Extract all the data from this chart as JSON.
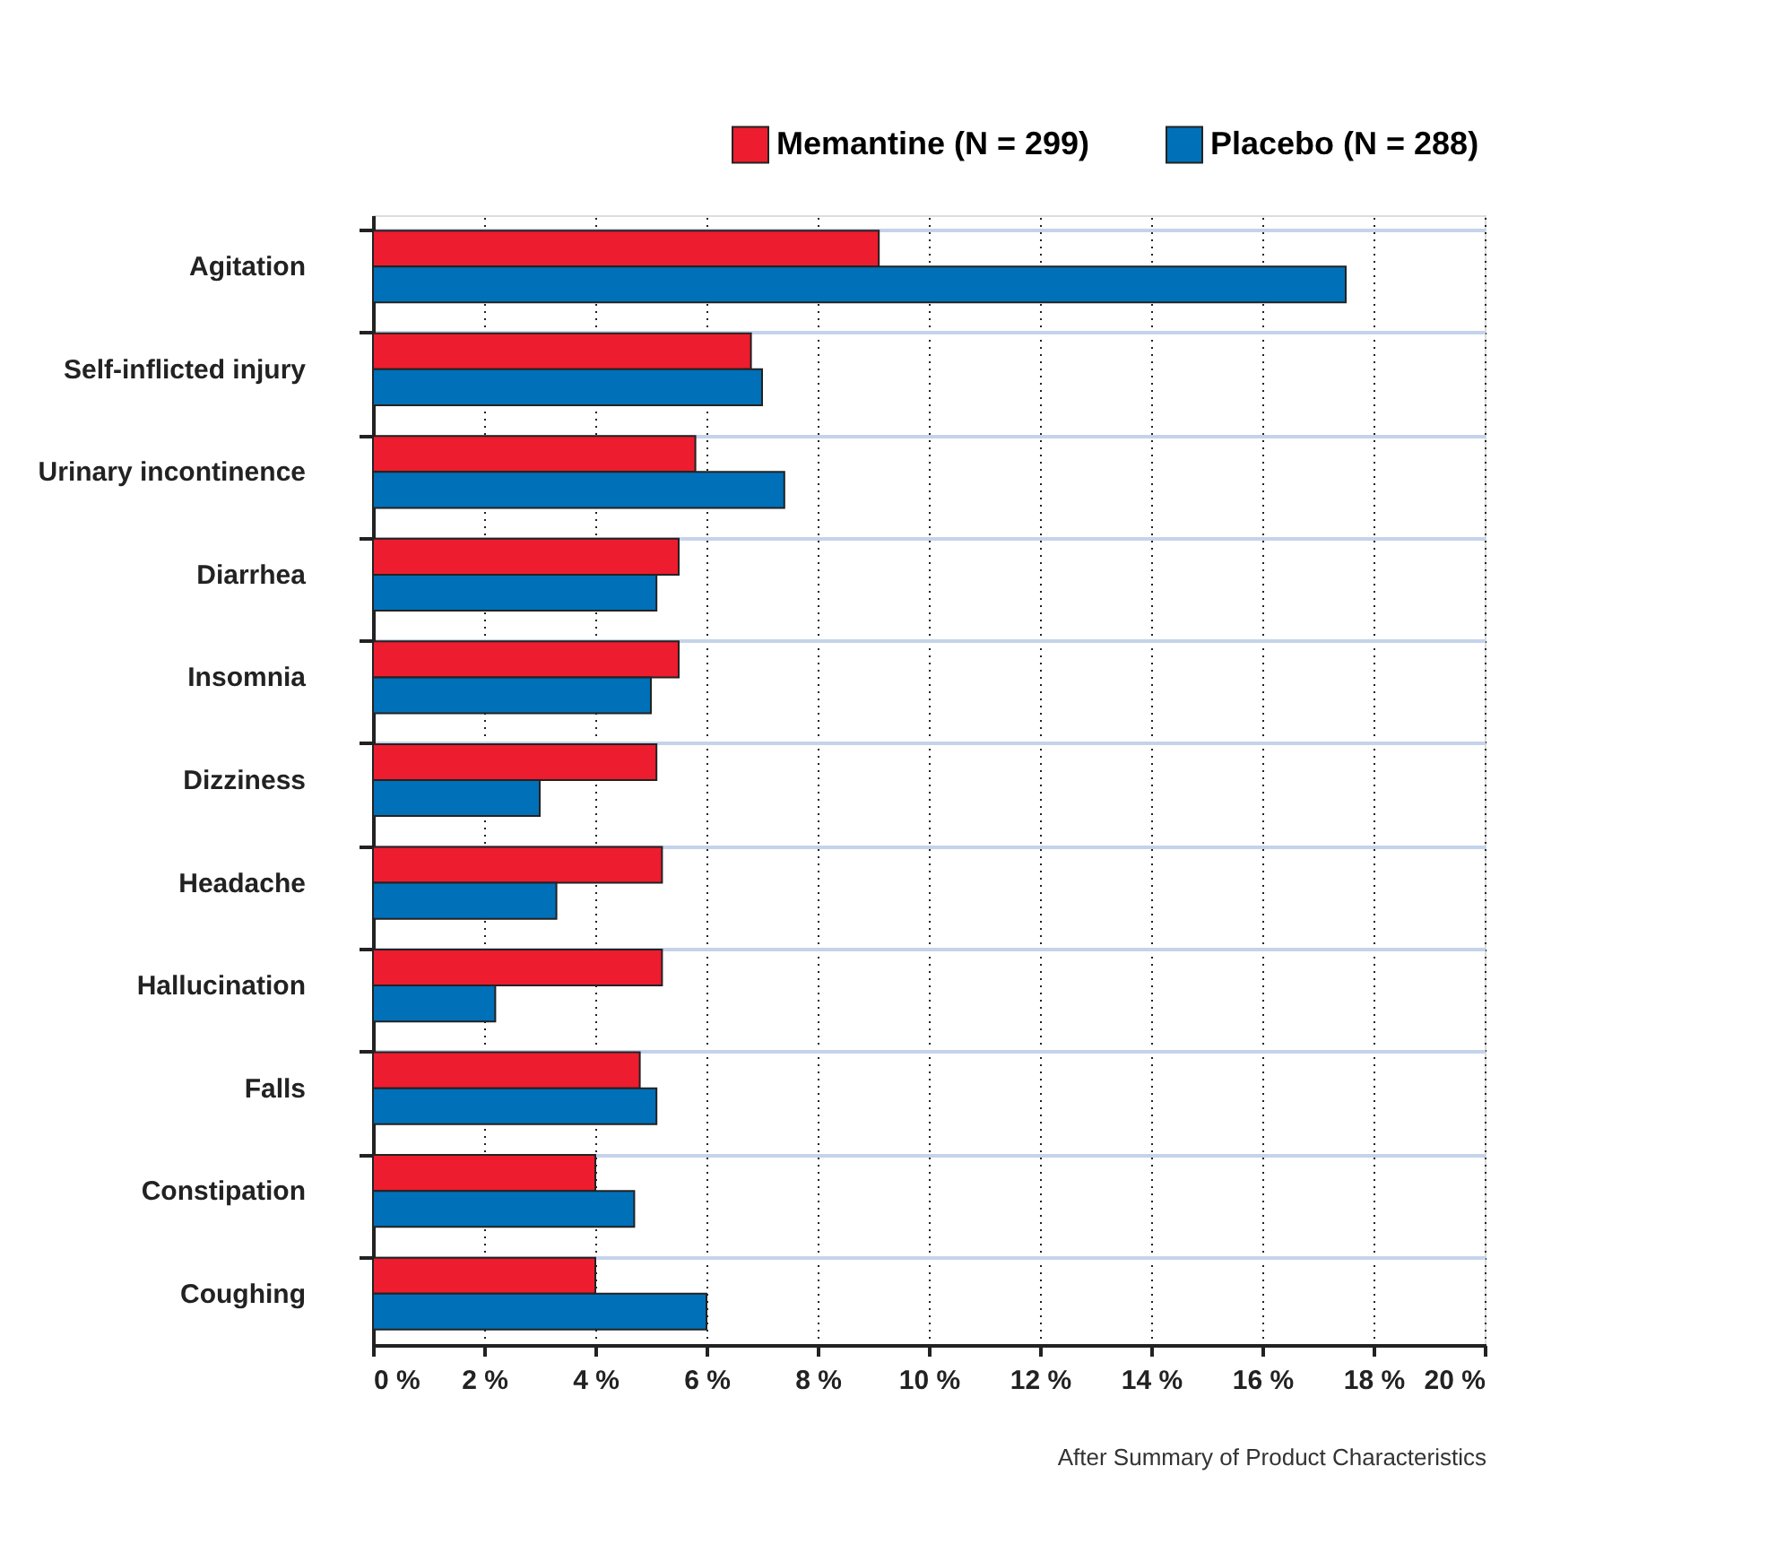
{
  "chart_data": {
    "type": "bar",
    "orientation": "horizontal",
    "categories": [
      "Agitation",
      "Self-inflicted injury",
      "Urinary incontinence",
      "Diarrhea",
      "Insomnia",
      "Dizziness",
      "Headache",
      "Hallucination",
      "Falls",
      "Constipation",
      "Coughing"
    ],
    "series": [
      {
        "name": "Memantine (N = 299)",
        "color": "#ed1c2e",
        "values": [
          9.1,
          6.8,
          5.8,
          5.5,
          5.5,
          5.1,
          5.2,
          5.2,
          4.8,
          4.0,
          4.0
        ]
      },
      {
        "name": "Placebo (N = 288)",
        "color": "#0070b8",
        "values": [
          17.5,
          7.0,
          7.4,
          5.1,
          5.0,
          3.0,
          3.3,
          2.2,
          5.1,
          4.7,
          6.0
        ]
      }
    ],
    "xlim": [
      0,
      20
    ],
    "xticks": [
      {
        "value": 0,
        "label": "0 %"
      },
      {
        "value": 2,
        "label": "2 %"
      },
      {
        "value": 4,
        "label": "4 %"
      },
      {
        "value": 6,
        "label": "6 %"
      },
      {
        "value": 8,
        "label": "8 %"
      },
      {
        "value": 10,
        "label": "10 %"
      },
      {
        "value": 12,
        "label": "12 %"
      },
      {
        "value": 14,
        "label": "14 %"
      },
      {
        "value": 16,
        "label": "16 %"
      },
      {
        "value": 18,
        "label": "18 %"
      },
      {
        "value": 20,
        "label": "20 %"
      }
    ],
    "grid": true,
    "legend": "top right",
    "annotations": [
      "After Summary of Product Characteristics"
    ]
  }
}
